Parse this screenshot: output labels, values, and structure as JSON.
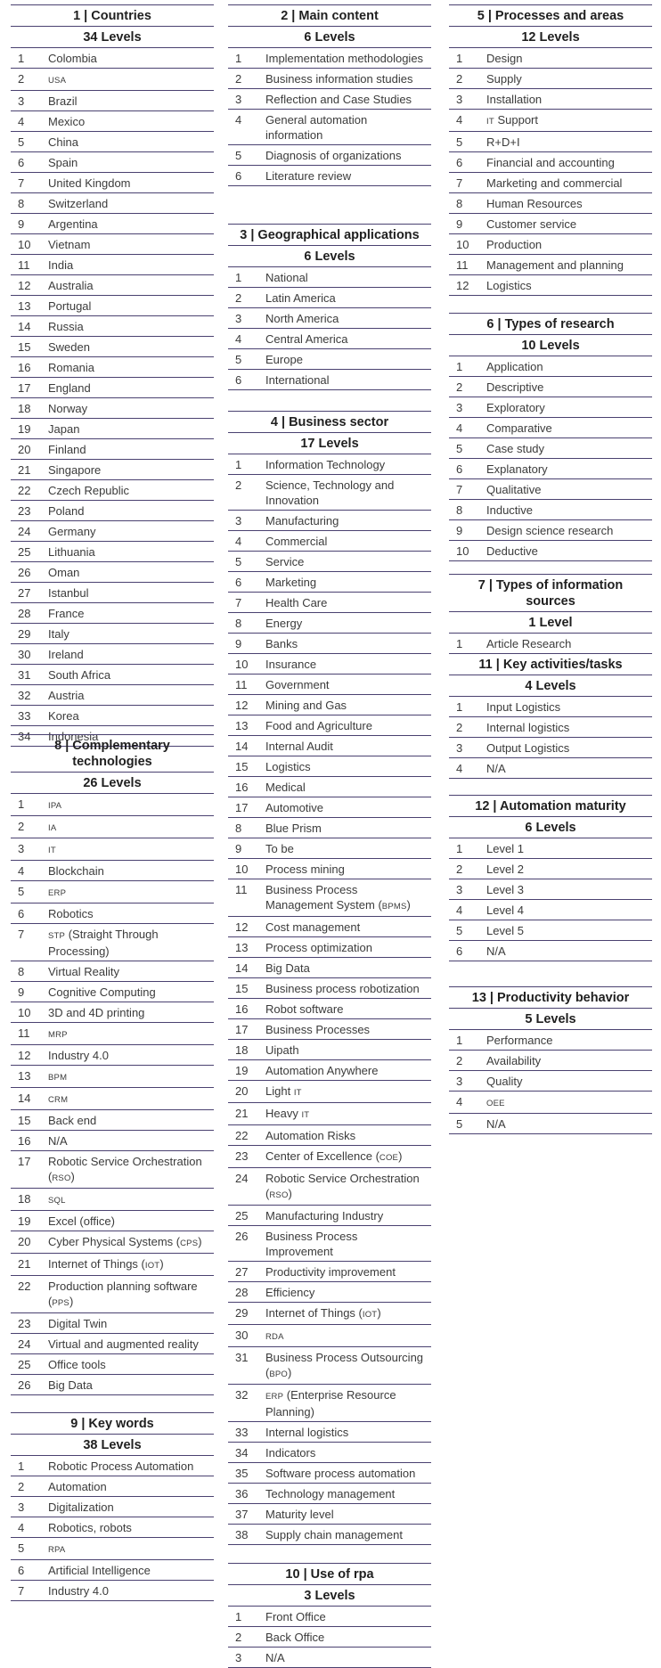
{
  "colors": {
    "rule": "#4a4170",
    "text": "#3b3b3b"
  },
  "sections": [
    {
      "id": "countries",
      "title": "1 | Countries",
      "levels": "34 Levels",
      "items": [
        "Colombia",
        "USA",
        "Brazil",
        "Mexico",
        "China",
        "Spain",
        "United Kingdom",
        "Switzerland",
        "Argentina",
        "Vietnam",
        "India",
        "Australia",
        "Portugal",
        "Russia",
        "Sweden",
        "Romania",
        "England",
        "Norway",
        "Japan",
        "Finland",
        "Singapore",
        "Czech Republic",
        "Poland",
        "Germany",
        "Lithuania",
        "Oman",
        "Istanbul",
        "France",
        "Italy",
        "Ireland",
        "South Africa",
        "Austria",
        "Korea",
        "Indonesia"
      ]
    },
    {
      "id": "complementary",
      "title": "8 | Complementary technologies",
      "levels": "26 Levels",
      "items": [
        "IPA",
        "IA",
        "IT",
        "Blockchain",
        "ERP",
        "Robotics",
        "STP (Straight Through Processing)",
        "Virtual Reality",
        "Cognitive Computing",
        "3D and 4D printing",
        "MRP",
        "Industry 4.0",
        "BPM",
        "CRM",
        "Back end",
        "N/A",
        "Robotic Service Orchestration (RSO)",
        "SQL",
        "Excel (office)",
        "Cyber Physical Systems (CPS)",
        "Internet of Things (IOT)",
        "Production planning software (PPS)",
        "Digital Twin",
        "Virtual and augmented reality",
        "Office tools",
        "Big Data"
      ]
    },
    {
      "id": "keywords",
      "title": "9 | Key words",
      "levels": "38 Levels",
      "items": [
        "Robotic Process Automation",
        "Automation",
        "Digitalization",
        "Robotics, robots",
        "RPA",
        "Artificial Intelligence",
        "Industry 4.0"
      ]
    },
    {
      "id": "main",
      "title": "2 | Main content",
      "levels": "6 Levels",
      "items": [
        "Implementation methodologies",
        "Business information studies",
        "Reflection and Case Studies",
        "General automation information",
        "Diagnosis of organizations",
        "Literature review"
      ]
    },
    {
      "id": "geo",
      "title": "3 | Geographical applications",
      "levels": "6 Levels",
      "items": [
        "National",
        "Latin America",
        "North America",
        "Central America",
        "Europe",
        "International"
      ]
    },
    {
      "id": "sector",
      "title": "4 | Business sector",
      "levels": "17 Levels",
      "items": [
        "Information Technology",
        "Science, Technology and Innovation",
        "Manufacturing",
        "Commercial",
        "Service",
        "Marketing",
        "Health Care",
        "Energy",
        "Banks",
        "Insurance",
        "Government",
        "Mining and Gas",
        "Food and Agriculture",
        "Internal Audit",
        "Logistics",
        "Medical",
        "Automotive",
        "Blue Prism",
        "To be",
        "Process mining",
        "Business Process Management System (BPMS)",
        "Cost management",
        "Process optimization",
        "Big Data",
        "Business process robotization",
        "Robot software",
        "Business Processes",
        "Uipath",
        "Automation Anywhere",
        "Light IT",
        "Heavy IT",
        "Automation Risks",
        "Center of Excellence (COE)",
        "Robotic Service Orchestration (RSO)",
        "Manufacturing Industry",
        "Business Process Improvement",
        "Productivity improvement",
        "Efficiency",
        "Internet of Things (IOT)",
        "RDA",
        "Business Process Outsourcing (BPO)",
        "ERP (Enterprise Resource Planning)",
        "Internal logistics",
        "Indicators",
        "Software process automation",
        "Technology management",
        "Maturity level",
        "Supply chain management"
      ],
      "numbers": [
        "1",
        "2",
        "3",
        "4",
        "5",
        "6",
        "7",
        "8",
        "9",
        "10",
        "11",
        "12",
        "13",
        "14",
        "15",
        "16",
        "17",
        "8",
        "9",
        "10",
        "11",
        "12",
        "13",
        "14",
        "15",
        "16",
        "17",
        "18",
        "19",
        "20",
        "21",
        "22",
        "23",
        "24",
        "25",
        "26",
        "27",
        "28",
        "29",
        "30",
        "31",
        "32",
        "33",
        "34",
        "35",
        "36",
        "37",
        "38"
      ]
    },
    {
      "id": "rpa",
      "title": "10 | Use of rpa",
      "levels": "3 Levels",
      "items": [
        "Front Office",
        "Back Office",
        "N/A"
      ]
    },
    {
      "id": "processes",
      "title": "5 | Processes and areas",
      "levels": "12 Levels",
      "items": [
        "Design",
        "Supply",
        "Installation",
        "IT Support",
        "R+D+I",
        "Financial and accounting",
        "Marketing and commercial",
        "Human Resources",
        "Customer service",
        "Production",
        "Management and planning",
        "Logistics"
      ]
    },
    {
      "id": "research",
      "title": "6 | Types of research",
      "levels": "10 Levels",
      "items": [
        "Application",
        "Descriptive",
        "Exploratory",
        "Comparative",
        "Case study",
        "Explanatory",
        "Qualitative",
        "Inductive",
        "Design science research",
        "Deductive"
      ]
    },
    {
      "id": "sources",
      "title": "7 | Types of information sources",
      "levels": "1 Level",
      "items": [
        "Article Research"
      ]
    },
    {
      "id": "activities",
      "title": "11 | Key activities/tasks",
      "levels": "4 Levels",
      "items": [
        "Input Logistics",
        "Internal logistics",
        "Output Logistics",
        "N/A"
      ]
    },
    {
      "id": "maturity",
      "title": "12 | Automation maturity",
      "levels": "6 Levels",
      "items": [
        "Level 1",
        "Level 2",
        "Level 3",
        "Level 4",
        "Level 5",
        "N/A"
      ]
    },
    {
      "id": "productivity",
      "title": "13 | Productivity behavior",
      "levels": "5 Levels",
      "items": [
        "Performance",
        "Availability",
        "Quality",
        "OEE",
        "N/A"
      ]
    }
  ]
}
